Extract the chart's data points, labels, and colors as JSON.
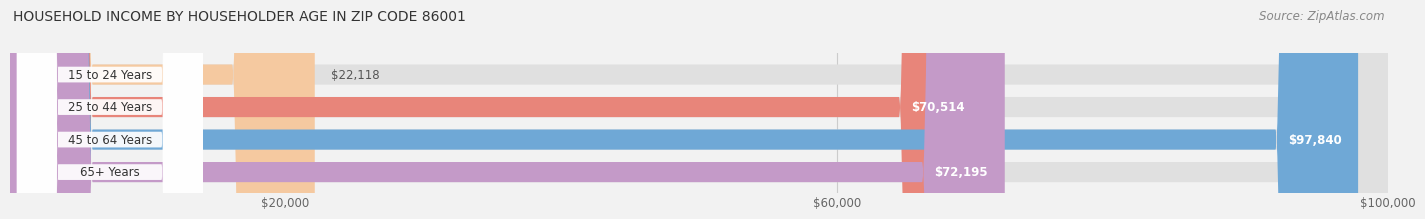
{
  "title": "HOUSEHOLD INCOME BY HOUSEHOLDER AGE IN ZIP CODE 86001",
  "source": "Source: ZipAtlas.com",
  "categories": [
    "15 to 24 Years",
    "25 to 44 Years",
    "45 to 64 Years",
    "65+ Years"
  ],
  "values": [
    22118,
    70514,
    97840,
    72195
  ],
  "labels": [
    "$22,118",
    "$70,514",
    "$97,840",
    "$72,195"
  ],
  "bar_colors": [
    "#f5c9a0",
    "#e8857a",
    "#6fa8d6",
    "#c49ac8"
  ],
  "label_colors": [
    "#555555",
    "#ffffff",
    "#ffffff",
    "#ffffff"
  ],
  "xlim": [
    0,
    100000
  ],
  "xticks": [
    20000,
    60000,
    100000
  ],
  "xticklabels": [
    "$20,000",
    "$60,000",
    "$100,000"
  ],
  "bg_color": "#f2f2f2",
  "bar_bg_color": "#e0e0e0",
  "title_fontsize": 10,
  "source_fontsize": 8.5,
  "bar_height": 0.62,
  "figsize": [
    14.06,
    2.33
  ]
}
